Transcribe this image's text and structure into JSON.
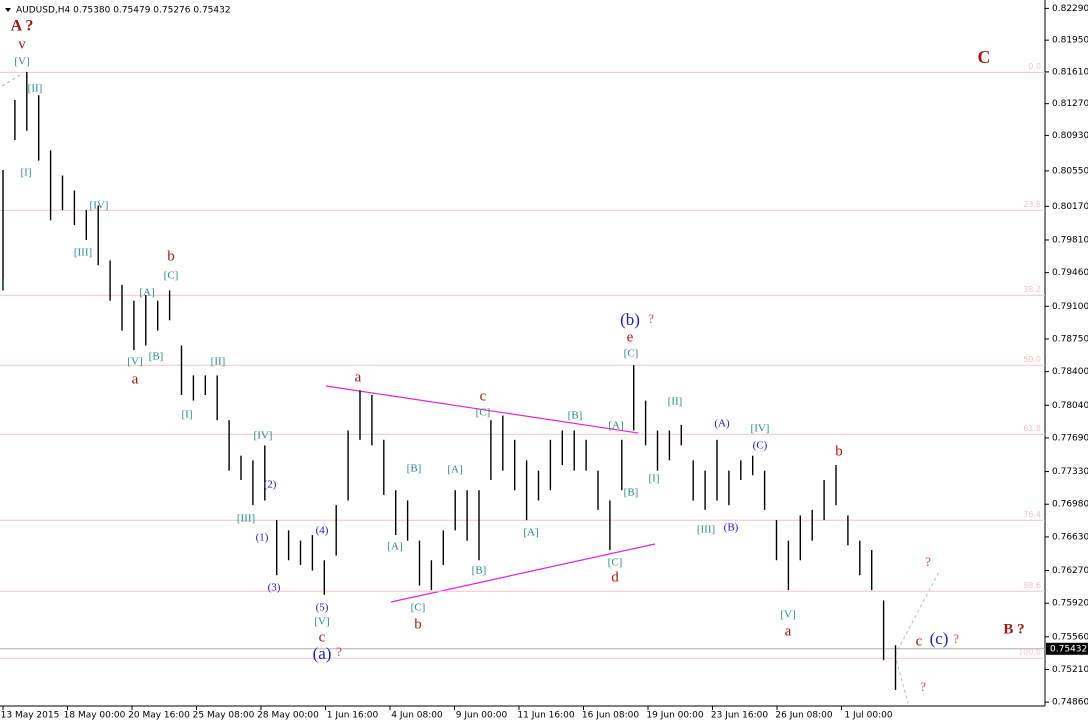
{
  "chart_data": {
    "type": "range-bar",
    "title": "AUDUSD,H4  0.75380 0.75479 0.75276 0.75432",
    "color": "#000000",
    "ylim": [
      0.7483,
      0.8238
    ],
    "yticks": [
      {
        "value": 0.8229,
        "label": "0.82290"
      },
      {
        "value": 0.8195,
        "label": "0.81950"
      },
      {
        "value": 0.8161,
        "label": "0.81610"
      },
      {
        "value": 0.8127,
        "label": "0.81270"
      },
      {
        "value": 0.8093,
        "label": "0.80930"
      },
      {
        "value": 0.8055,
        "label": "0.80550"
      },
      {
        "value": 0.8017,
        "label": "0.80170"
      },
      {
        "value": 0.7981,
        "label": "0.79810"
      },
      {
        "value": 0.7946,
        "label": "0.79460"
      },
      {
        "value": 0.791,
        "label": "0.79100"
      },
      {
        "value": 0.7875,
        "label": "0.78750"
      },
      {
        "value": 0.784,
        "label": "0.78400"
      },
      {
        "value": 0.7804,
        "label": "0.78040"
      },
      {
        "value": 0.7769,
        "label": "0.77690"
      },
      {
        "value": 0.7733,
        "label": "0.77330"
      },
      {
        "value": 0.7698,
        "label": "0.76980"
      },
      {
        "value": 0.7663,
        "label": "0.76630"
      },
      {
        "value": 0.7627,
        "label": "0.76270"
      },
      {
        "value": 0.7592,
        "label": "0.75920"
      },
      {
        "value": 0.7556,
        "label": "0.75560"
      },
      {
        "value": 0.7521,
        "label": "0.75210"
      },
      {
        "value": 0.7486,
        "label": "0.74860"
      }
    ],
    "xticks": [
      "13 May 2015",
      "18 May 00:00",
      "20 May 16:00",
      "25 May 08:00",
      "28 May 00:00",
      "1 Jun 16:00",
      "4 Jun 08:00",
      "9 Jun 00:00",
      "11 Jun 16:00",
      "16 Jun 08:00",
      "19 Jun 00:00",
      "23 Jun 16:00",
      "26 Jun 08:00",
      "1 Jul 00:00"
    ],
    "high": [
      0.8056,
      0.8131,
      0.8161,
      0.8136,
      0.8077,
      0.805,
      0.8034,
      0.8013,
      0.8018,
      0.7959,
      0.7933,
      0.7916,
      0.7922,
      0.7916,
      0.7927,
      0.7868,
      0.7836,
      0.7836,
      0.7836,
      0.7788,
      0.775,
      0.7745,
      0.7761,
      0.7681,
      0.767,
      0.7659,
      0.7665,
      0.7638,
      0.7697,
      0.7777,
      0.782,
      0.7815,
      0.7767,
      0.7713,
      0.7702,
      0.7659,
      0.7638,
      0.767,
      0.7713,
      0.7713,
      0.7713,
      0.7788,
      0.7793,
      0.7767,
      0.7745,
      0.7734,
      0.7767,
      0.7777,
      0.7777,
      0.7767,
      0.7734,
      0.7702,
      0.7767,
      0.7847,
      0.7809,
      0.7777,
      0.7777,
      0.7783,
      0.7745,
      0.7734,
      0.7767,
      0.7734,
      0.7745,
      0.775,
      0.7734,
      0.7681,
      0.7659,
      0.7686,
      0.7692,
      0.7724,
      0.774,
      0.7686,
      0.7659,
      0.7649,
      0.7595,
      0.7547
    ],
    "low": [
      0.7927,
      0.8088,
      0.8098,
      0.8066,
      0.8002,
      0.8013,
      0.7997,
      0.7981,
      0.7954,
      0.7916,
      0.7884,
      0.7863,
      0.7868,
      0.7884,
      0.7895,
      0.7815,
      0.7809,
      0.7815,
      0.7788,
      0.7734,
      0.7724,
      0.7697,
      0.7702,
      0.7622,
      0.7638,
      0.7633,
      0.7627,
      0.7601,
      0.7643,
      0.7702,
      0.7767,
      0.7761,
      0.7708,
      0.7665,
      0.7659,
      0.7611,
      0.7606,
      0.7633,
      0.767,
      0.7659,
      0.7638,
      0.7724,
      0.7734,
      0.7713,
      0.7681,
      0.7702,
      0.7713,
      0.774,
      0.7734,
      0.7734,
      0.7692,
      0.7649,
      0.7713,
      0.7777,
      0.7761,
      0.7734,
      0.7745,
      0.7761,
      0.7702,
      0.7692,
      0.7702,
      0.7697,
      0.7724,
      0.7729,
      0.7692,
      0.7638,
      0.7606,
      0.7638,
      0.7659,
      0.7681,
      0.7697,
      0.7654,
      0.7622,
      0.7606,
      0.7531,
      0.7499
    ],
    "last_price": {
      "value": 0.75432,
      "label": "0.75432"
    },
    "fib_color": "#f4c2ca",
    "fib_levels": [
      {
        "value": 0.81605,
        "label": "0.0"
      },
      {
        "value": 0.80128,
        "label": "23.6"
      },
      {
        "value": 0.79218,
        "label": "38.2"
      },
      {
        "value": 0.78468,
        "label": "50.0"
      },
      {
        "value": 0.77729,
        "label": "61.8"
      },
      {
        "value": 0.76808,
        "label": "76.4"
      },
      {
        "value": 0.76048,
        "label": "88.6"
      },
      {
        "value": 0.75331,
        "label": "100.0"
      }
    ],
    "annotations": [
      {
        "text": "A ?",
        "color": "#a01818"
      },
      {
        "text": "v",
        "color": "#a01818"
      },
      {
        "text": "[V]",
        "color": "#2a8a8a"
      },
      {
        "text": "[II]",
        "color": "#2a8a8a"
      },
      {
        "text": "[I]",
        "color": "#2a8a8a"
      },
      {
        "text": "[IV]",
        "color": "#2a8a8a"
      },
      {
        "text": "[III]",
        "color": "#2a8a8a"
      },
      {
        "text": "b",
        "color": "#a01818"
      },
      {
        "text": "[C]",
        "color": "#2a8a8a"
      },
      {
        "text": "[A]",
        "color": "#2a8a8a"
      },
      {
        "text": "[V]",
        "color": "#2a8a8a"
      },
      {
        "text": "[B]",
        "color": "#2a8a8a"
      },
      {
        "text": "a",
        "color": "#a01818"
      },
      {
        "text": "[II]",
        "color": "#2a8a8a"
      },
      {
        "text": "[I]",
        "color": "#2a8a8a"
      },
      {
        "text": "[IV]",
        "color": "#2a8a8a"
      },
      {
        "text": "(2)",
        "color": "#1a1acc"
      },
      {
        "text": "[III]",
        "color": "#2a8a8a"
      },
      {
        "text": "(1)",
        "color": "#1a1acc"
      },
      {
        "text": "(4)",
        "color": "#1a1acc"
      },
      {
        "text": "(3)",
        "color": "#1a1acc"
      },
      {
        "text": "(5)",
        "color": "#1a1acc"
      },
      {
        "text": "[V]",
        "color": "#2a8a8a"
      },
      {
        "text": "c",
        "color": "#a01818"
      },
      {
        "text": "(a)",
        "color": "#1a1acc"
      },
      {
        "text": "?",
        "color": "#e0405a"
      },
      {
        "text": "a",
        "color": "#a01818"
      },
      {
        "text": "c",
        "color": "#a01818"
      },
      {
        "text": "[C]",
        "color": "#2a8a8a"
      },
      {
        "text": "[B]",
        "color": "#2a8a8a"
      },
      {
        "text": "[A]",
        "color": "#2a8a8a"
      },
      {
        "text": "[A]",
        "color": "#2a8a8a"
      },
      {
        "text": "[B]",
        "color": "#2a8a8a"
      },
      {
        "text": "[C]",
        "color": "#2a8a8a"
      },
      {
        "text": "b",
        "color": "#a01818"
      },
      {
        "text": "[B]",
        "color": "#2a8a8a"
      },
      {
        "text": "[A]",
        "color": "#2a8a8a"
      },
      {
        "text": "(b)",
        "color": "#1a1acc"
      },
      {
        "text": "?",
        "color": "#e0405a"
      },
      {
        "text": "e",
        "color": "#a01818"
      },
      {
        "text": "[C]",
        "color": "#2a8a8a"
      },
      {
        "text": "[A]",
        "color": "#2a8a8a"
      },
      {
        "text": "[B]",
        "color": "#2a8a8a"
      },
      {
        "text": "[I]",
        "color": "#2a8a8a"
      },
      {
        "text": "[C]",
        "color": "#2a8a8a"
      },
      {
        "text": "d",
        "color": "#a01818"
      },
      {
        "text": "[II]",
        "color": "#2a8a8a"
      },
      {
        "text": "(A)",
        "color": "#1a1acc"
      },
      {
        "text": "[IV]",
        "color": "#2a8a8a"
      },
      {
        "text": "(C)",
        "color": "#1a1acc"
      },
      {
        "text": "(B)",
        "color": "#1a1acc"
      },
      {
        "text": "[III]",
        "color": "#2a8a8a"
      },
      {
        "text": "b",
        "color": "#a01818"
      },
      {
        "text": "[V]",
        "color": "#2a8a8a"
      },
      {
        "text": "a",
        "color": "#a01818"
      },
      {
        "text": "C",
        "color": "#a01818"
      },
      {
        "text": "B ?",
        "color": "#a01818"
      },
      {
        "text": "c",
        "color": "#a01818"
      },
      {
        "text": "(c)",
        "color": "#1a1acc"
      },
      {
        "text": "?",
        "color": "#e0405a"
      },
      {
        "text": "?",
        "color": "#e0405a"
      },
      {
        "text": "?",
        "color": "#e0405a"
      },
      {
        "text": "]",
        "color": "#2a8a8a"
      }
    ]
  }
}
